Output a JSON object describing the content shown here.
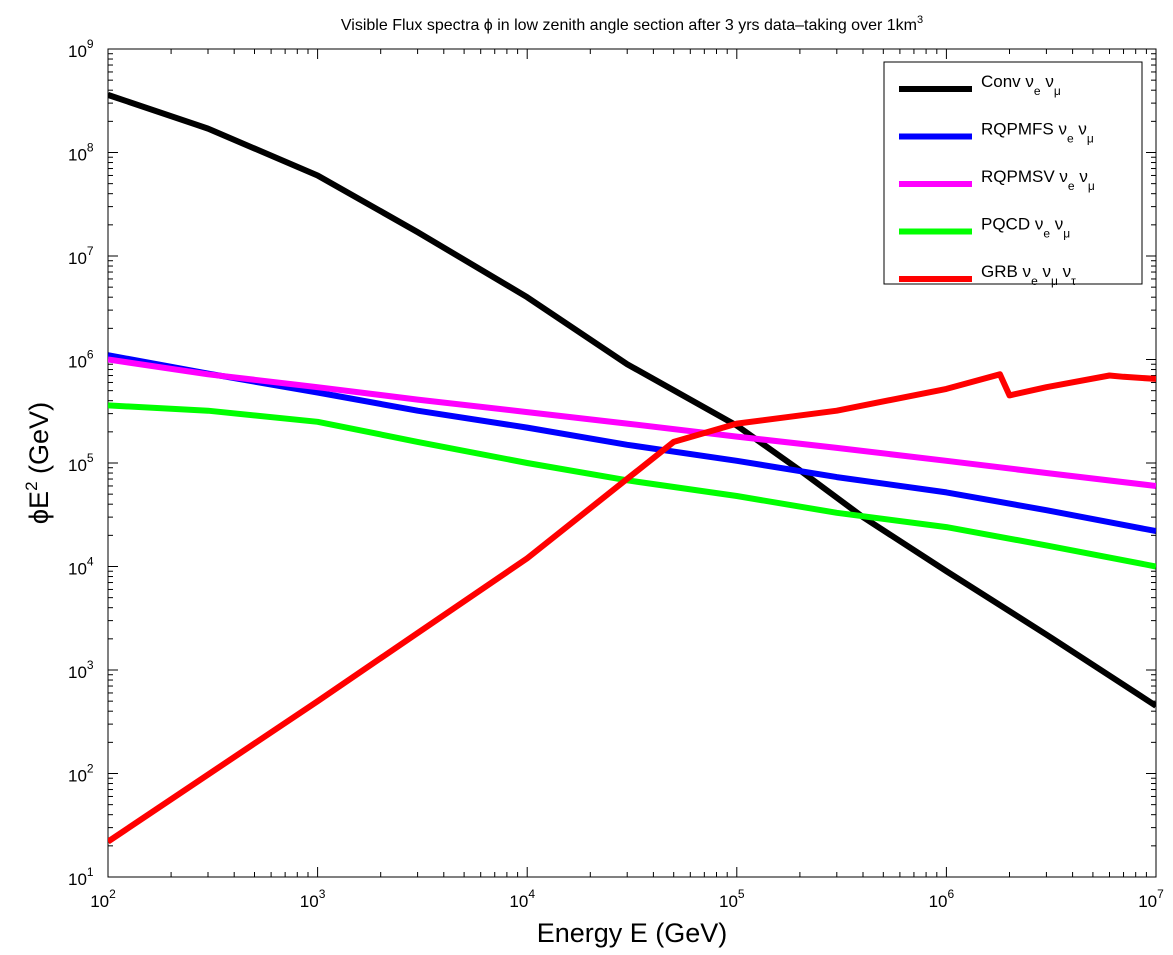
{
  "chart_data": {
    "type": "line",
    "title": "Visible Flux spectra ϕ in low zenith angle section after 3 yrs data–taking over 1km",
    "title_sup": "3",
    "xlabel": "Energy E (GeV)",
    "ylabel": "ϕE",
    "ylabel_sup": "2",
    "ylabel_unit": " (GeV)",
    "x_scale": "log",
    "y_scale": "log",
    "xlim": [
      100,
      10000000
    ],
    "ylim": [
      10,
      1000000000
    ],
    "grid": false,
    "legend_position": "top-right",
    "x_ticks": [
      {
        "base": "10",
        "exp": "2",
        "value": 100
      },
      {
        "base": "10",
        "exp": "3",
        "value": 1000
      },
      {
        "base": "10",
        "exp": "4",
        "value": 10000
      },
      {
        "base": "10",
        "exp": "5",
        "value": 100000
      },
      {
        "base": "10",
        "exp": "6",
        "value": 1000000
      },
      {
        "base": "10",
        "exp": "7",
        "value": 10000000
      }
    ],
    "y_ticks": [
      {
        "base": "10",
        "exp": "1",
        "value": 10
      },
      {
        "base": "10",
        "exp": "2",
        "value": 100
      },
      {
        "base": "10",
        "exp": "3",
        "value": 1000
      },
      {
        "base": "10",
        "exp": "4",
        "value": 10000
      },
      {
        "base": "10",
        "exp": "5",
        "value": 100000
      },
      {
        "base": "10",
        "exp": "6",
        "value": 1000000
      },
      {
        "base": "10",
        "exp": "7",
        "value": 10000000
      },
      {
        "base": "10",
        "exp": "8",
        "value": 100000000
      },
      {
        "base": "10",
        "exp": "9",
        "value": 1000000000
      }
    ],
    "series": [
      {
        "name": "Conv",
        "name_parts": [
          {
            "t": "Conv ν"
          },
          {
            "t": "e",
            "sub": true
          },
          {
            "t": " ν"
          },
          {
            "t": "μ",
            "sub": true
          }
        ],
        "color": "#000000",
        "x": [
          100,
          300,
          1000,
          3000,
          10000,
          30000,
          100000,
          200000,
          400000,
          1000000,
          3000000,
          10000000
        ],
        "y": [
          360000000,
          170000000,
          60000000,
          17000000,
          4000000,
          900000,
          230000,
          85000,
          30000,
          9000,
          2200,
          450
        ]
      },
      {
        "name": "RQPMFS",
        "name_parts": [
          {
            "t": "RQPMFS ν"
          },
          {
            "t": "e",
            "sub": true
          },
          {
            "t": " ν"
          },
          {
            "t": "μ",
            "sub": true
          }
        ],
        "color": "#0000ff",
        "x": [
          100,
          300,
          1000,
          3000,
          10000,
          30000,
          100000,
          300000,
          1000000,
          3000000,
          10000000
        ],
        "y": [
          1100000,
          730000,
          480000,
          320000,
          220000,
          150000,
          105000,
          73000,
          52000,
          35000,
          22000
        ]
      },
      {
        "name": "RQPMSV",
        "name_parts": [
          {
            "t": "RQPMSV ν"
          },
          {
            "t": "e",
            "sub": true
          },
          {
            "t": " ν"
          },
          {
            "t": "μ",
            "sub": true
          }
        ],
        "color": "#ff00ff",
        "x": [
          100,
          300,
          1000,
          3000,
          10000,
          30000,
          100000,
          300000,
          1000000,
          3000000,
          10000000
        ],
        "y": [
          1000000,
          720000,
          540000,
          410000,
          310000,
          240000,
          180000,
          140000,
          105000,
          80000,
          60000
        ]
      },
      {
        "name": "PQCD",
        "name_parts": [
          {
            "t": "PQCD ν"
          },
          {
            "t": "e",
            "sub": true
          },
          {
            "t": " ν"
          },
          {
            "t": "μ",
            "sub": true
          }
        ],
        "color": "#00ff00",
        "x": [
          100,
          300,
          1000,
          3000,
          10000,
          30000,
          100000,
          300000,
          1000000,
          3000000,
          10000000
        ],
        "y": [
          360000,
          320000,
          250000,
          160000,
          100000,
          68000,
          48000,
          33000,
          24000,
          16000,
          10000
        ]
      },
      {
        "name": "GRB",
        "name_parts": [
          {
            "t": "GRB ν"
          },
          {
            "t": "e",
            "sub": true
          },
          {
            "t": " ν"
          },
          {
            "t": "μ",
            "sub": true
          },
          {
            "t": " ν"
          },
          {
            "t": "τ",
            "sub": true
          }
        ],
        "color": "#ff0000",
        "x": [
          100,
          1000,
          10000,
          50000,
          100000,
          300000,
          1000000,
          1800000,
          2000000,
          3000000,
          6000000,
          7000000,
          10000000
        ],
        "y": [
          22,
          500,
          12000,
          160000,
          240000,
          320000,
          520000,
          720000,
          450000,
          540000,
          700000,
          680000,
          650000
        ]
      }
    ]
  }
}
